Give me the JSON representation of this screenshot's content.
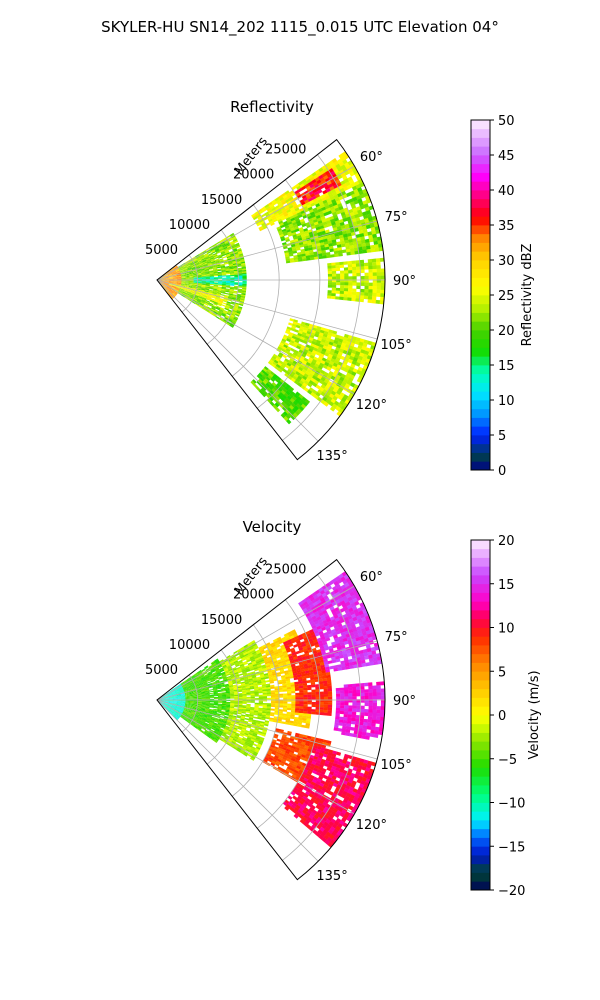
{
  "figure": {
    "title": "SKYLER-HU  SN14_202  1115_0.015 UTC Elevation 04°"
  },
  "chart_data": [
    {
      "type": "heatmap",
      "projection": "polar-sector",
      "title": "Reflectivity",
      "range_axis_label": "Meters",
      "range_ticks": [
        5000,
        10000,
        15000,
        20000,
        25000
      ],
      "range_tick_labels": [
        "5000",
        "10000",
        "15000",
        "20000",
        "25000"
      ],
      "range_max": 28000,
      "azimuth_range": [
        52,
        142
      ],
      "azimuth_ticks": [
        60,
        75,
        90,
        105,
        120,
        135
      ],
      "azimuth_tick_labels": [
        "60°",
        "75°",
        "90°",
        "105°",
        "120°",
        "135°"
      ],
      "grid": true,
      "colorbar": {
        "label": "Reflectivity dBZ",
        "min": 0,
        "max": 50,
        "ticks": [
          0,
          5,
          10,
          15,
          20,
          25,
          30,
          35,
          40,
          45,
          50
        ],
        "tick_labels": [
          "0",
          "5",
          "10",
          "15",
          "20",
          "25",
          "30",
          "35",
          "40",
          "45",
          "50"
        ],
        "colormap": "pyart_NWSRef"
      },
      "echo_regions": [
        {
          "az": [
            53,
            142
          ],
          "range": [
            0,
            3000
          ],
          "value": 32
        },
        {
          "az": [
            58,
            122
          ],
          "range": [
            3000,
            11000
          ],
          "value": 22
        },
        {
          "az": [
            86,
            94
          ],
          "range": [
            4500,
            11000
          ],
          "value": 14
        },
        {
          "az": [
            103,
            110
          ],
          "range": [
            1500,
            9000
          ],
          "value": 26
        },
        {
          "az": [
            55,
            64
          ],
          "range": [
            14000,
            28000
          ],
          "value": 26
        },
        {
          "az": [
            57,
            62
          ],
          "range": [
            20000,
            25500
          ],
          "value": 36
        },
        {
          "az": [
            64,
            82
          ],
          "range": [
            16000,
            28000
          ],
          "value": 22
        },
        {
          "az": [
            84,
            96
          ],
          "range": [
            21000,
            28000
          ],
          "value": 24
        },
        {
          "az": [
            106,
            126
          ],
          "range": [
            17000,
            28000
          ],
          "value": 24
        },
        {
          "az": [
            128,
            137
          ],
          "range": [
            17000,
            24000
          ],
          "value": 20
        }
      ]
    },
    {
      "type": "heatmap",
      "projection": "polar-sector",
      "title": "Velocity",
      "range_axis_label": "Meters",
      "range_ticks": [
        5000,
        10000,
        15000,
        20000,
        25000
      ],
      "range_tick_labels": [
        "5000",
        "10000",
        "15000",
        "20000",
        "25000"
      ],
      "range_max": 28000,
      "azimuth_range": [
        52,
        142
      ],
      "azimuth_ticks": [
        60,
        75,
        90,
        105,
        120,
        135
      ],
      "azimuth_tick_labels": [
        "60°",
        "75°",
        "90°",
        "105°",
        "120°",
        "135°"
      ],
      "grid": true,
      "colorbar": {
        "label": "Velocity (m/s)",
        "min": -20,
        "max": 20,
        "ticks": [
          -20,
          -15,
          -10,
          -5,
          0,
          5,
          10,
          15,
          20
        ],
        "tick_labels": [
          "−20",
          "−15",
          "−10",
          "−5",
          "0",
          "5",
          "10",
          "15",
          "20"
        ],
        "colormap": "pyart_NWSVel"
      },
      "echo_regions": [
        {
          "az": [
            55,
            135
          ],
          "range": [
            0,
            3500
          ],
          "value": -11
        },
        {
          "az": [
            55,
            125
          ],
          "range": [
            3500,
            9000
          ],
          "value": -5
        },
        {
          "az": [
            58,
            122
          ],
          "range": [
            9000,
            14000
          ],
          "value": -2
        },
        {
          "az": [
            62,
            100
          ],
          "range": [
            14000,
            19000
          ],
          "value": 2
        },
        {
          "az": [
            65,
            95
          ],
          "range": [
            17000,
            21500
          ],
          "value": 9
        },
        {
          "az": [
            55,
            80
          ],
          "range": [
            21000,
            28000
          ],
          "value": 15
        },
        {
          "az": [
            85,
            100
          ],
          "range": [
            22000,
            28000
          ],
          "value": 14
        },
        {
          "az": [
            103,
            120
          ],
          "range": [
            15000,
            22000
          ],
          "value": 8
        },
        {
          "az": [
            106,
            130
          ],
          "range": [
            20000,
            28000
          ],
          "value": 11
        }
      ]
    }
  ]
}
